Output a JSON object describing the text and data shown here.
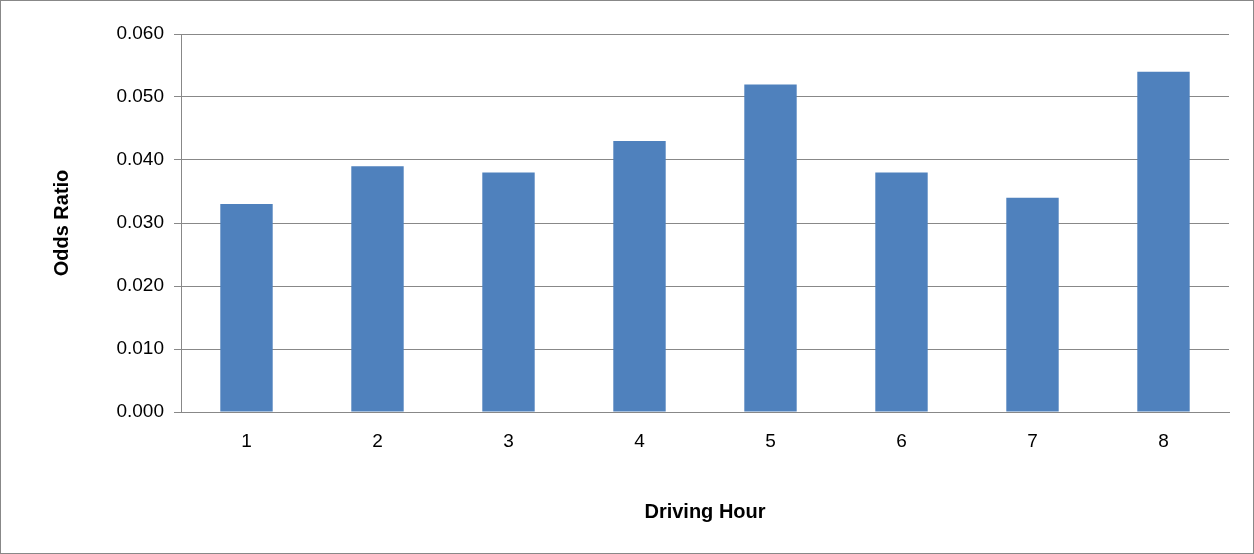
{
  "chart_data": {
    "type": "bar",
    "xlabel": "Driving Hour",
    "ylabel": "Odds Ratio",
    "categories": [
      "1",
      "2",
      "3",
      "4",
      "5",
      "6",
      "7",
      "8"
    ],
    "values": [
      0.033,
      0.039,
      0.038,
      0.043,
      0.052,
      0.038,
      0.034,
      0.054
    ],
    "color": "#4f81bd",
    "ylim": [
      0,
      0.06
    ],
    "yticks": [
      {
        "value": 0,
        "label": "0.000"
      },
      {
        "value": 0.01,
        "label": "0.010"
      },
      {
        "value": 0.02,
        "label": "0.020"
      },
      {
        "value": 0.03,
        "label": "0.030"
      },
      {
        "value": 0.04,
        "label": "0.040"
      },
      {
        "value": 0.05,
        "label": "0.050"
      },
      {
        "value": 0.06,
        "label": "0.060"
      }
    ],
    "grid": "y",
    "legend": false
  }
}
